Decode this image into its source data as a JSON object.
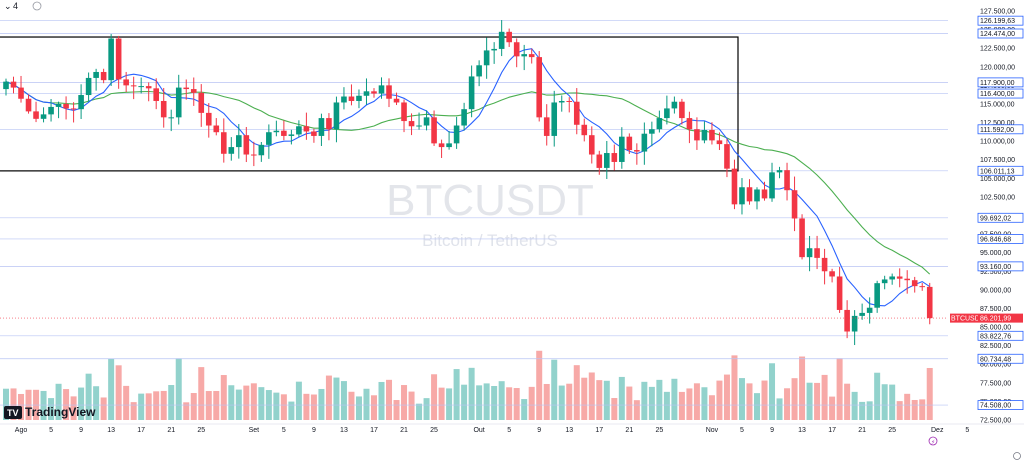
{
  "chart_data": {
    "type": "candlestick",
    "symbol": "BTCUSDT",
    "description": "Bitcoin / TetherUS",
    "brand": "TradingView",
    "top_left_value": "4",
    "last_price_label": "BTCUSDT",
    "last_price": 86201.99,
    "last_price_text": "86.201,99",
    "y_ticks": [
      72500,
      75000,
      77500,
      80000,
      82500,
      85000,
      87500,
      90000,
      92500,
      95000,
      97500,
      100000,
      102500,
      105000,
      107500,
      110000,
      112500,
      115000,
      117500,
      120000,
      122500,
      125000,
      127500
    ],
    "y_tick_labels": [
      "72.500,00",
      "75.000,00",
      "77.500,00",
      "80.000,00",
      "82.500,00",
      "85.000,00",
      "87.500,00",
      "90.000,00",
      "92.500,00",
      "95.000,00",
      "97.500,00",
      "100.000,00",
      "102.500,00",
      "105.000,00",
      "107.500,00",
      "110.000,00",
      "112.500,00",
      "115.000,00",
      "117.500,00",
      "120.000,00",
      "122.500,00",
      "125.000,00",
      "127.500,00"
    ],
    "levels": [
      {
        "value": 126199.63,
        "label": "126.199,63"
      },
      {
        "value": 124474.0,
        "label": "124.474,00"
      },
      {
        "value": 117900.0,
        "label": "117.900,00"
      },
      {
        "value": 116400.0,
        "label": "116.400,00"
      },
      {
        "value": 111592.0,
        "label": "111.592,00"
      },
      {
        "value": 106011.13,
        "label": "106.011,13"
      },
      {
        "value": 99692.02,
        "label": "99.692,02"
      },
      {
        "value": 96846.68,
        "label": "96.846,68"
      },
      {
        "value": 93160.0,
        "label": "93.160,00"
      },
      {
        "value": 83822.76,
        "label": "83.822,76"
      },
      {
        "value": 80734.48,
        "label": "80.734,48"
      },
      {
        "value": 74508.0,
        "label": "74.508,00"
      }
    ],
    "range_box": {
      "high": 124000,
      "low": 106000
    },
    "x_labels": [
      {
        "index": 2,
        "label": "Ago"
      },
      {
        "index": 6,
        "label": "5"
      },
      {
        "index": 10,
        "label": "9"
      },
      {
        "index": 14,
        "label": "13"
      },
      {
        "index": 18,
        "label": "17"
      },
      {
        "index": 22,
        "label": "21"
      },
      {
        "index": 26,
        "label": "25"
      },
      {
        "index": 33,
        "label": "Set"
      },
      {
        "index": 37,
        "label": "5"
      },
      {
        "index": 41,
        "label": "9"
      },
      {
        "index": 45,
        "label": "13"
      },
      {
        "index": 49,
        "label": "17"
      },
      {
        "index": 53,
        "label": "21"
      },
      {
        "index": 57,
        "label": "25"
      },
      {
        "index": 63,
        "label": "Out"
      },
      {
        "index": 67,
        "label": "5"
      },
      {
        "index": 71,
        "label": "9"
      },
      {
        "index": 75,
        "label": "13"
      },
      {
        "index": 79,
        "label": "17"
      },
      {
        "index": 83,
        "label": "21"
      },
      {
        "index": 87,
        "label": "25"
      },
      {
        "index": 94,
        "label": "Nov"
      },
      {
        "index": 98,
        "label": "5"
      },
      {
        "index": 102,
        "label": "9"
      },
      {
        "index": 106,
        "label": "13"
      },
      {
        "index": 110,
        "label": "17"
      },
      {
        "index": 114,
        "label": "21"
      },
      {
        "index": 118,
        "label": "25"
      },
      {
        "index": 124,
        "label": "Dez"
      },
      {
        "index": 128,
        "label": "5"
      }
    ],
    "closes": [
      118000,
      117200,
      115700,
      114000,
      113000,
      113600,
      114600,
      115000,
      114400,
      114300,
      116200,
      118500,
      119300,
      118200,
      123800,
      118300,
      117500,
      117400,
      117400,
      117100,
      115400,
      113200,
      113200,
      117200,
      117000,
      116500,
      113800,
      112100,
      111200,
      108300,
      109200,
      110800,
      108200,
      108100,
      109500,
      111200,
      111400,
      110700,
      110900,
      112000,
      111300,
      110700,
      113100,
      111600,
      115200,
      116000,
      115400,
      116100,
      116700,
      116400,
      117500,
      115700,
      115200,
      112700,
      112000,
      112100,
      113200,
      109700,
      109200,
      109700,
      112100,
      114300,
      118700,
      120200,
      122200,
      122400,
      124700,
      123300,
      121400,
      121700,
      121300,
      113200,
      110700,
      115200,
      115400,
      115300,
      112200,
      110800,
      108200,
      106400,
      108400,
      107200,
      110600,
      108800,
      108600,
      111000,
      111600,
      113100,
      114400,
      115300,
      113100,
      111600,
      110100,
      111500,
      110100,
      109600,
      106300,
      101500,
      103800,
      101900,
      103500,
      102300,
      105800,
      106100,
      103400,
      99600,
      94400,
      95600,
      94300,
      92500,
      91800,
      87300,
      84400,
      86500,
      86900,
      87600,
      90900,
      91400,
      91800,
      91500,
      91300,
      90500,
      90400,
      86200
    ],
    "volume_range": [
      0,
      3.3
    ]
  }
}
